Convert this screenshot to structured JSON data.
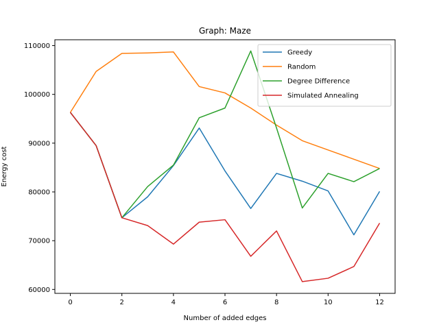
{
  "chart_data": {
    "type": "line",
    "title": "Graph: Maze",
    "xlabel": "Number of added edges",
    "ylabel": "Energy cost",
    "xlim": [
      -0.6,
      12.6
    ],
    "ylim": [
      59200,
      111200
    ],
    "x_ticks": [
      0,
      2,
      4,
      6,
      8,
      10,
      12
    ],
    "y_ticks": [
      60000,
      70000,
      80000,
      90000,
      100000,
      110000
    ],
    "grid": false,
    "legend_position": "top-right",
    "x": [
      0,
      1,
      2,
      3,
      4,
      5,
      6,
      7,
      8,
      9,
      10,
      11,
      12
    ],
    "series": [
      {
        "name": "Greedy",
        "color": "#1f77b4",
        "values": [
          96300,
          89500,
          74700,
          79000,
          85400,
          93100,
          84300,
          76600,
          83800,
          82200,
          80200,
          71200,
          80100
        ]
      },
      {
        "name": "Random",
        "color": "#ff7f0e",
        "values": [
          96300,
          104700,
          108400,
          108500,
          108700,
          101600,
          100300,
          97200,
          93700,
          90500,
          88600,
          86700,
          84800
        ]
      },
      {
        "name": "Degree Difference",
        "color": "#2ca02c",
        "values": [
          96300,
          89500,
          74700,
          81100,
          85500,
          95200,
          97200,
          108900,
          93100,
          76700,
          83800,
          82100,
          84800
        ]
      },
      {
        "name": "Simulated Annealing",
        "color": "#d62728",
        "values": [
          96300,
          89500,
          74700,
          73100,
          69300,
          73800,
          74300,
          66800,
          72000,
          61600,
          62300,
          64700,
          73600
        ]
      }
    ]
  }
}
